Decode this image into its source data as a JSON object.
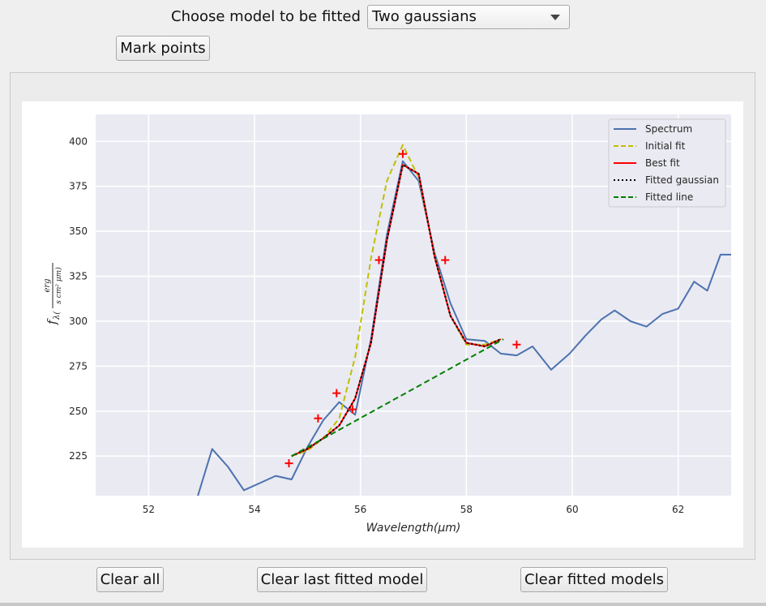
{
  "controls": {
    "model_label": "Choose model to be fitted",
    "model_value": "Two gaussians",
    "mark_points": "Mark points"
  },
  "buttons": {
    "clear_all": "Clear all",
    "clear_last": "Clear last fitted model",
    "clear_fitted": "Clear fitted models"
  },
  "chart_data": {
    "type": "line",
    "xlabel": "Wavelength(μm)",
    "ylabel": "fλ(erg / s cm² μm)",
    "ylabel_main": "f",
    "ylabel_sub": "λ",
    "ylabel_num": "erg",
    "ylabel_den": "s cm² μm",
    "xlim": [
      51.0,
      63.0
    ],
    "ylim": [
      203.0,
      415.0
    ],
    "xticks": [
      52,
      54,
      56,
      58,
      60,
      62
    ],
    "yticks": [
      225,
      250,
      275,
      300,
      325,
      350,
      375,
      400
    ],
    "grid": true,
    "legend_position": "top-right",
    "colors": {
      "spectrum": "#4c72b0",
      "initial_fit": "#bfbf00",
      "best_fit": "#ff0000",
      "fitted_gaussian": "#000000",
      "fitted_line": "#008000",
      "marked_points": "#ff0000",
      "plot_bg": "#eaeaf2"
    },
    "series": [
      {
        "name": "Spectrum",
        "key": "spectrum",
        "style": "solid",
        "x": [
          52.9,
          53.2,
          53.5,
          53.8,
          54.1,
          54.4,
          54.7,
          55.0,
          55.3,
          55.6,
          55.9,
          56.2,
          56.5,
          56.8,
          57.1,
          57.4,
          57.7,
          58.0,
          58.35,
          58.65,
          58.95,
          59.25,
          59.6,
          59.95,
          60.25,
          60.55,
          60.8,
          61.1,
          61.4,
          61.7,
          62.0,
          62.3,
          62.55,
          62.8,
          63.0
        ],
        "y": [
          200,
          229,
          219,
          206,
          210,
          214,
          212,
          230,
          245,
          255,
          248,
          290,
          348,
          389,
          378,
          338,
          310,
          290,
          289,
          282,
          281,
          286,
          273,
          282,
          292,
          301,
          306,
          300,
          297,
          304,
          307,
          322,
          317,
          337,
          337
        ]
      },
      {
        "name": "Initial fit",
        "key": "initial_fit",
        "style": "dashed",
        "x": [
          54.7,
          55.0,
          55.3,
          55.6,
          55.9,
          56.2,
          56.5,
          56.8,
          57.1,
          57.4,
          57.7,
          58.0,
          58.35,
          58.65
        ],
        "y": [
          225,
          228,
          235,
          246,
          280,
          335,
          378,
          398,
          380,
          337,
          303,
          287,
          287,
          290
        ]
      },
      {
        "name": "Best fit",
        "key": "best_fit",
        "style": "solid",
        "x": [
          54.7,
          55.0,
          55.3,
          55.6,
          55.9,
          56.2,
          56.5,
          56.8,
          57.1,
          57.4,
          57.7,
          58.0,
          58.35,
          58.65
        ],
        "y": [
          225,
          229,
          235,
          242,
          257,
          288,
          345,
          387,
          382,
          336,
          303,
          288,
          286,
          290
        ]
      },
      {
        "name": "Fitted gaussian",
        "key": "fitted_gaussian",
        "style": "dotted",
        "x": [
          54.7,
          55.0,
          55.3,
          55.6,
          55.9,
          56.2,
          56.5,
          56.8,
          57.1,
          57.4,
          57.7,
          58.0,
          58.35,
          58.65
        ],
        "y": [
          225,
          229,
          235,
          242,
          257,
          288,
          345,
          387,
          382,
          336,
          303,
          288,
          286,
          290
        ]
      },
      {
        "name": "Fitted line",
        "key": "fitted_line",
        "style": "dashed",
        "x": [
          54.7,
          58.7
        ],
        "y": [
          225,
          290
        ]
      }
    ],
    "marked_points": {
      "x": [
        54.65,
        55.2,
        55.55,
        55.85,
        56.35,
        56.8,
        57.6,
        58.95
      ],
      "y": [
        221,
        246,
        260,
        251,
        334,
        393,
        334,
        287
      ]
    }
  }
}
